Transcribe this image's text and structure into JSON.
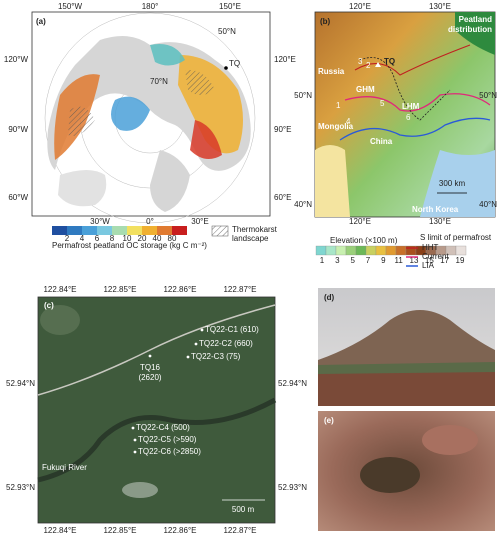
{
  "panel_a": {
    "label": "(a)",
    "lon_labels": [
      "150°W",
      "180°",
      "150°E",
      "120°W",
      "120°E",
      "90°W",
      "90°E",
      "60°W",
      "60°E",
      "30°W",
      "0°",
      "30°E"
    ],
    "lat_labels": [
      "50°N",
      "70°N"
    ],
    "site": "TQ",
    "legend_title": "Permafrost peatland OC storage (kg C m⁻²)",
    "legend_ticks": [
      2,
      4,
      6,
      8,
      10,
      20,
      40,
      80
    ],
    "thermokarst_label": [
      "Thermokarst",
      "landscape"
    ]
  },
  "panel_b": {
    "label": "(b)",
    "lon_labels": [
      "120°E",
      "130°E"
    ],
    "lat_labels": [
      "50°N",
      "40°N"
    ],
    "peatland_label": [
      "Peatland",
      "distribution"
    ],
    "regions": [
      "Russia",
      "GHM",
      "LHM",
      "Mongolia",
      "China",
      "North Korea"
    ],
    "site": "TQ",
    "site_numbers": [
      "1",
      "2",
      "3",
      "4",
      "5",
      "6"
    ],
    "scale_bar": "300 km",
    "elevation_title": "Elevation (×100 m)",
    "elevation_ticks": [
      1,
      3,
      5,
      7,
      9,
      11,
      13,
      15,
      17,
      19
    ],
    "permafrost_title": "S limit of permafrost",
    "permafrost_lines": [
      "HHT",
      "Current",
      "LIA"
    ]
  },
  "panel_c": {
    "label": "(c)",
    "lon_labels": [
      "122.84°E",
      "122.85°E",
      "122.86°E",
      "122.87°E"
    ],
    "lat_labels": [
      "52.94°N",
      "52.93°N"
    ],
    "sites": [
      "TQ22-C1 (610)",
      "TQ22-C2 (660)",
      "TQ22-C3 (75)",
      "TQ16",
      "(2620)",
      "TQ22-C4 (500)",
      "TQ22-C5 (>590)",
      "TQ22-C6 (>2850)"
    ],
    "river": "Fukuqi River",
    "scale_bar": "500 m"
  },
  "panel_d": {
    "label": "(d)"
  },
  "panel_e": {
    "label": "(e)"
  }
}
